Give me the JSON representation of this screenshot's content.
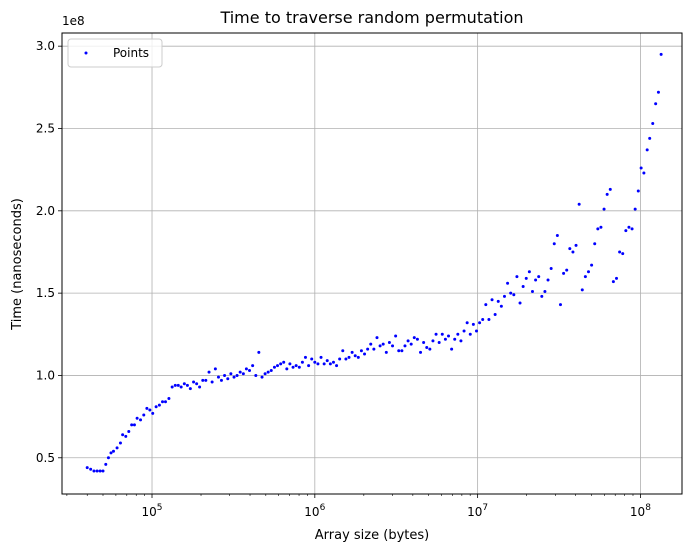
{
  "chart_data": {
    "type": "scatter",
    "title": "Time to traverse random permutation",
    "xlabel": "Array size (bytes)",
    "ylabel": "Time (nanoseconds)",
    "x_scale": "log",
    "xlim": [
      28000,
      180000000
    ],
    "ylim": [
      0.28,
      3.08
    ],
    "y_multiplier_label": "1e8",
    "grid": true,
    "legend": {
      "location": "top-left"
    },
    "colors": {
      "points": "#0000ff",
      "grid": "#b0b0b0",
      "axes": "#000000"
    },
    "x_ticks": [
      {
        "value": 100000,
        "base": "10",
        "exp": "5"
      },
      {
        "value": 1000000,
        "base": "10",
        "exp": "6"
      },
      {
        "value": 10000000,
        "base": "10",
        "exp": "7"
      },
      {
        "value": 100000000,
        "base": "10",
        "exp": "8"
      }
    ],
    "y_ticks": [
      {
        "value": 0.5,
        "label": "0.5"
      },
      {
        "value": 1.0,
        "label": "1.0"
      },
      {
        "value": 1.5,
        "label": "1.5"
      },
      {
        "value": 2.0,
        "label": "2.0"
      },
      {
        "value": 2.5,
        "label": "2.5"
      },
      {
        "value": 3.0,
        "label": "3.0"
      }
    ],
    "series": [
      {
        "name": "Points",
        "points": [
          [
            40000,
            0.44
          ],
          [
            42000,
            0.43
          ],
          [
            44000,
            0.42
          ],
          [
            46000,
            0.42
          ],
          [
            48000,
            0.42
          ],
          [
            50000,
            0.42
          ],
          [
            52000,
            0.46
          ],
          [
            54000,
            0.5
          ],
          [
            56000,
            0.53
          ],
          [
            58000,
            0.54
          ],
          [
            61000,
            0.56
          ],
          [
            64000,
            0.59
          ],
          [
            66000,
            0.64
          ],
          [
            69000,
            0.63
          ],
          [
            72000,
            0.66
          ],
          [
            75000,
            0.7
          ],
          [
            78000,
            0.7
          ],
          [
            81000,
            0.74
          ],
          [
            85000,
            0.73
          ],
          [
            89000,
            0.76
          ],
          [
            93000,
            0.8
          ],
          [
            97000,
            0.79
          ],
          [
            101000,
            0.77
          ],
          [
            106000,
            0.81
          ],
          [
            111000,
            0.82
          ],
          [
            116000,
            0.84
          ],
          [
            121000,
            0.84
          ],
          [
            127000,
            0.86
          ],
          [
            133000,
            0.93
          ],
          [
            139000,
            0.94
          ],
          [
            145000,
            0.94
          ],
          [
            151000,
            0.93
          ],
          [
            158000,
            0.95
          ],
          [
            165000,
            0.94
          ],
          [
            172000,
            0.92
          ],
          [
            180000,
            0.96
          ],
          [
            188000,
            0.95
          ],
          [
            196000,
            0.93
          ],
          [
            205000,
            0.97
          ],
          [
            214000,
            0.97
          ],
          [
            224000,
            1.02
          ],
          [
            234000,
            0.96
          ],
          [
            245000,
            1.04
          ],
          [
            256000,
            0.99
          ],
          [
            267000,
            0.97
          ],
          [
            279000,
            1.0
          ],
          [
            292000,
            0.98
          ],
          [
            305000,
            1.01
          ],
          [
            319000,
            0.99
          ],
          [
            333000,
            1.0
          ],
          [
            348000,
            1.02
          ],
          [
            364000,
            1.01
          ],
          [
            380000,
            1.04
          ],
          [
            397000,
            1.03
          ],
          [
            415000,
            1.06
          ],
          [
            434000,
            1.0
          ],
          [
            453000,
            1.14
          ],
          [
            474000,
            0.99
          ],
          [
            495000,
            1.01
          ],
          [
            517000,
            1.02
          ],
          [
            540000,
            1.03
          ],
          [
            565000,
            1.05
          ],
          [
            590000,
            1.06
          ],
          [
            617000,
            1.07
          ],
          [
            644000,
            1.08
          ],
          [
            673000,
            1.04
          ],
          [
            703000,
            1.07
          ],
          [
            735000,
            1.05
          ],
          [
            768000,
            1.06
          ],
          [
            803000,
            1.05
          ],
          [
            839000,
            1.08
          ],
          [
            876000,
            1.11
          ],
          [
            916000,
            1.06
          ],
          [
            957000,
            1.1
          ],
          [
            1000000,
            1.08
          ],
          [
            1045000,
            1.07
          ],
          [
            1092000,
            1.11
          ],
          [
            1141000,
            1.07
          ],
          [
            1192000,
            1.09
          ],
          [
            1246000,
            1.07
          ],
          [
            1302000,
            1.08
          ],
          [
            1360000,
            1.06
          ],
          [
            1421000,
            1.1
          ],
          [
            1485000,
            1.15
          ],
          [
            1552000,
            1.1
          ],
          [
            1622000,
            1.11
          ],
          [
            1695000,
            1.14
          ],
          [
            1771000,
            1.12
          ],
          [
            1850000,
            1.11
          ],
          [
            1933000,
            1.15
          ],
          [
            2020000,
            1.13
          ],
          [
            2111000,
            1.16
          ],
          [
            2206000,
            1.19
          ],
          [
            2305000,
            1.16
          ],
          [
            2409000,
            1.23
          ],
          [
            2517000,
            1.18
          ],
          [
            2630000,
            1.19
          ],
          [
            2749000,
            1.14
          ],
          [
            2872000,
            1.2
          ],
          [
            3001000,
            1.18
          ],
          [
            3136000,
            1.24
          ],
          [
            3277000,
            1.15
          ],
          [
            3425000,
            1.15
          ],
          [
            3579000,
            1.18
          ],
          [
            3740000,
            1.21
          ],
          [
            3908000,
            1.19
          ],
          [
            4083000,
            1.23
          ],
          [
            4267000,
            1.22
          ],
          [
            4459000,
            1.14
          ],
          [
            4659000,
            1.2
          ],
          [
            4869000,
            1.17
          ],
          [
            5088000,
            1.16
          ],
          [
            5316000,
            1.21
          ],
          [
            5555000,
            1.25
          ],
          [
            5805000,
            1.2
          ],
          [
            6066000,
            1.25
          ],
          [
            6339000,
            1.22
          ],
          [
            6624000,
            1.24
          ],
          [
            6922000,
            1.16
          ],
          [
            7233000,
            1.22
          ],
          [
            7558000,
            1.25
          ],
          [
            7898000,
            1.21
          ],
          [
            8253000,
            1.27
          ],
          [
            8624000,
            1.32
          ],
          [
            9011000,
            1.25
          ],
          [
            9416000,
            1.31
          ],
          [
            9839000,
            1.27
          ],
          [
            10282000,
            1.32
          ],
          [
            10744000,
            1.34
          ],
          [
            11227000,
            1.43
          ],
          [
            11732000,
            1.34
          ],
          [
            12260000,
            1.46
          ],
          [
            12811000,
            1.37
          ],
          [
            13387000,
            1.45
          ],
          [
            13989000,
            1.42
          ],
          [
            14618000,
            1.48
          ],
          [
            15276000,
            1.56
          ],
          [
            15963000,
            1.5
          ],
          [
            16681000,
            1.49
          ],
          [
            17431000,
            1.6
          ],
          [
            18215000,
            1.44
          ],
          [
            19034000,
            1.54
          ],
          [
            19891000,
            1.59
          ],
          [
            20786000,
            1.63
          ],
          [
            21721000,
            1.51
          ],
          [
            22698000,
            1.58
          ],
          [
            23720000,
            1.6
          ],
          [
            24787000,
            1.48
          ],
          [
            25902000,
            1.51
          ],
          [
            27067000,
            1.58
          ],
          [
            28285000,
            1.65
          ],
          [
            29557000,
            1.8
          ],
          [
            30887000,
            1.85
          ],
          [
            32277000,
            1.43
          ],
          [
            33729000,
            1.62
          ],
          [
            35247000,
            1.64
          ],
          [
            36833000,
            1.77
          ],
          [
            38490000,
            1.75
          ],
          [
            40222000,
            1.79
          ],
          [
            42032000,
            2.04
          ],
          [
            43923000,
            1.52
          ],
          [
            45899000,
            1.6
          ],
          [
            47964000,
            1.63
          ],
          [
            50123000,
            1.67
          ],
          [
            52378000,
            1.8
          ],
          [
            54735000,
            1.89
          ],
          [
            57198000,
            1.9
          ],
          [
            59772000,
            2.01
          ],
          [
            62461000,
            2.1
          ],
          [
            65272000,
            2.13
          ],
          [
            68209000,
            1.57
          ],
          [
            71278000,
            1.59
          ],
          [
            74486000,
            1.75
          ],
          [
            77838000,
            1.74
          ],
          [
            81340000,
            1.88
          ],
          [
            85000000,
            1.9
          ],
          [
            88825000,
            1.89
          ],
          [
            92823000,
            2.01
          ],
          [
            97000000,
            2.12
          ],
          [
            101000000,
            2.26
          ],
          [
            105000000,
            2.23
          ],
          [
            110000000,
            2.37
          ],
          [
            114000000,
            2.44
          ],
          [
            119000000,
            2.53
          ],
          [
            124000000,
            2.65
          ],
          [
            129000000,
            2.72
          ],
          [
            134000000,
            2.95
          ]
        ]
      }
    ]
  }
}
